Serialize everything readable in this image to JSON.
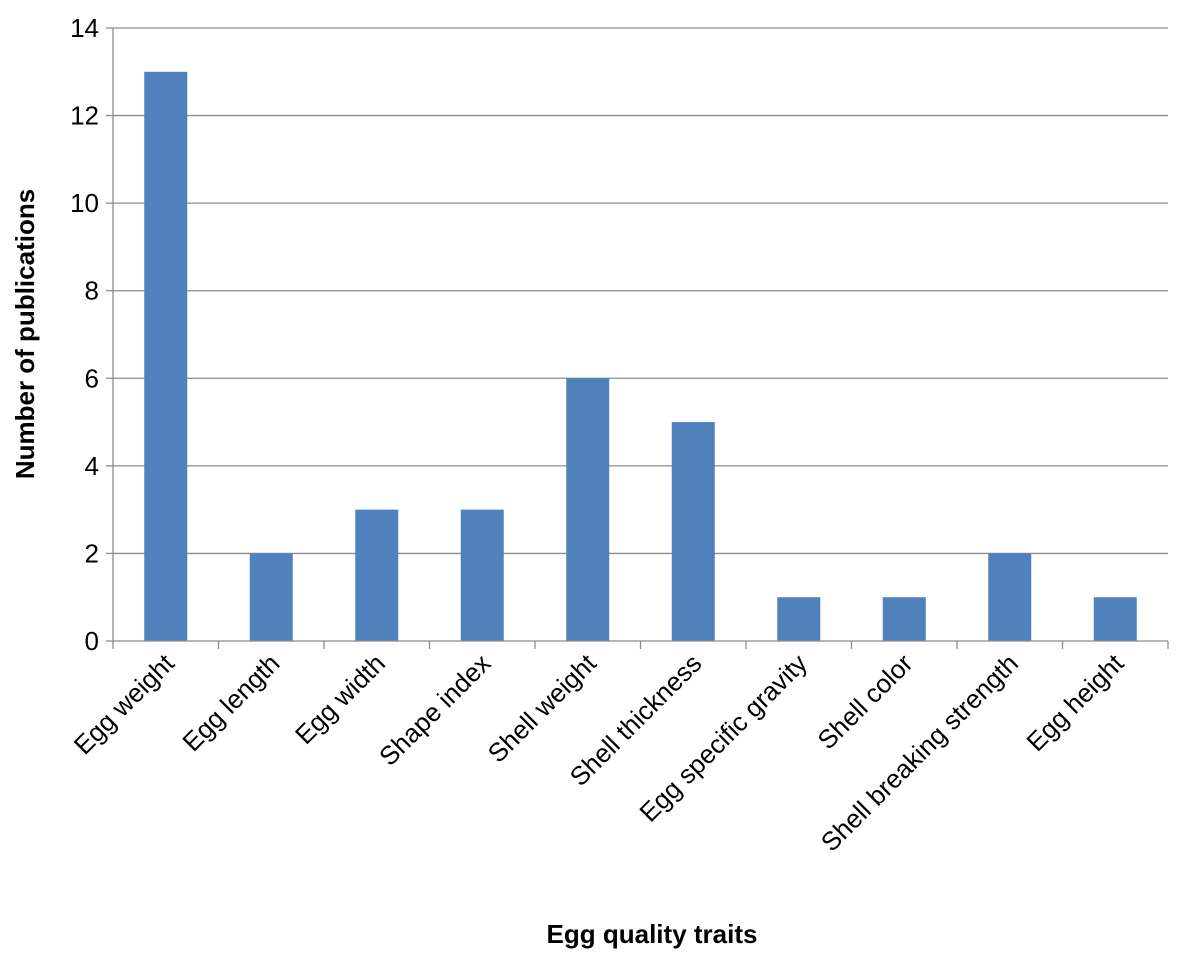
{
  "chart_data": {
    "type": "bar",
    "categories": [
      "Egg weight",
      "Egg length",
      "Egg width",
      "Shape index",
      "Shell weight",
      "Shell thickness",
      "Egg specific gravity",
      "Shell color",
      "Shell breaking strength",
      "Egg height"
    ],
    "values": [
      13,
      2,
      3,
      3,
      6,
      5,
      1,
      1,
      2,
      1
    ],
    "xlabel": "Egg quality traits",
    "ylabel": "Number of publications",
    "ylim": [
      0,
      14
    ],
    "yticks": [
      0,
      2,
      4,
      6,
      8,
      10,
      12,
      14
    ],
    "grid": true,
    "legend": "none",
    "bar_color": "#4F81BD",
    "gridline_color": "#8C8C8C"
  }
}
